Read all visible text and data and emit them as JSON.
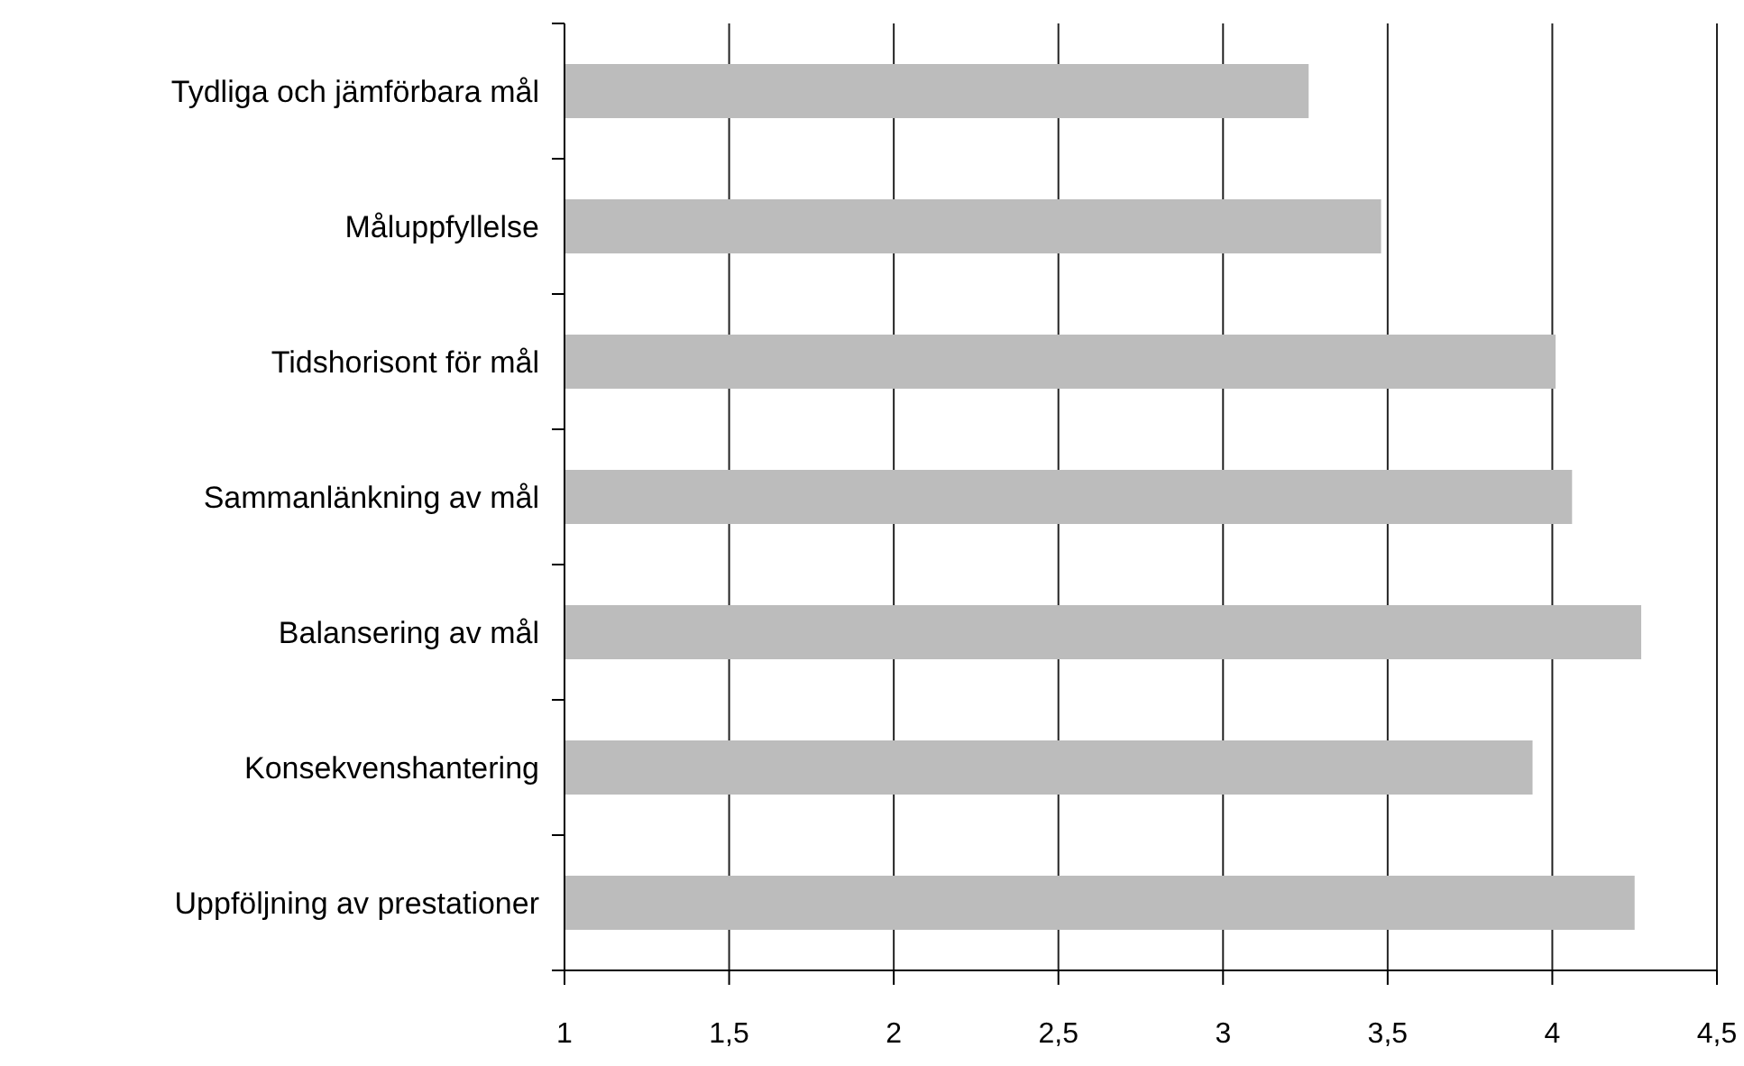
{
  "chart_data": {
    "type": "bar",
    "orientation": "horizontal",
    "categories": [
      "Tydliga och jämförbara mål",
      "Måluppfyllelse",
      "Tidshorisont för mål",
      "Sammanlänkning av mål",
      "Balansering av mål",
      "Konsekvenshantering",
      "Uppföljning av prestationer"
    ],
    "values": [
      3.26,
      3.48,
      4.01,
      4.06,
      4.27,
      3.94,
      4.25
    ],
    "color": "#bcbcbc",
    "xlim": [
      1,
      4.5
    ],
    "xticks": [
      1,
      {
        "value": 1.5,
        "label": "1,5"
      },
      2,
      {
        "value": 2.5,
        "label": "2,5"
      },
      3,
      {
        "value": 3.5,
        "label": "3,5"
      },
      4,
      {
        "value": 4.5,
        "label": "4,5"
      }
    ],
    "grid": "x"
  }
}
